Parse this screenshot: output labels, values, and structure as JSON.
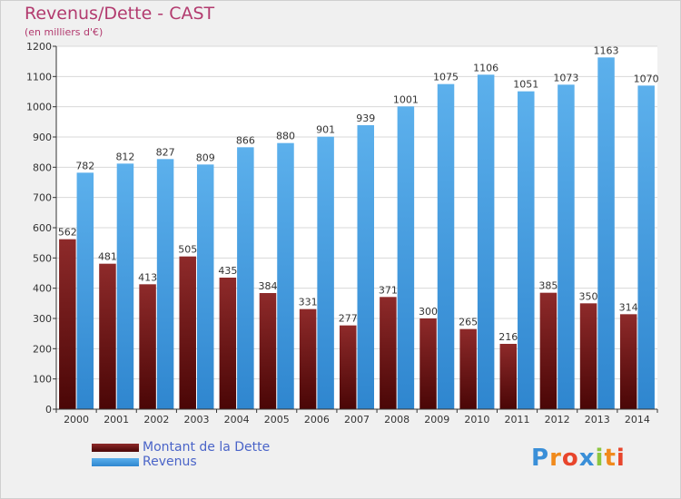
{
  "chart_data": {
    "type": "bar",
    "title": "Revenus/Dette - CAST",
    "subtitle": "(en milliers d'€)",
    "categories": [
      "2000",
      "2001",
      "2002",
      "2003",
      "2004",
      "2005",
      "2006",
      "2007",
      "2008",
      "2009",
      "2010",
      "2011",
      "2012",
      "2013",
      "2014"
    ],
    "series": [
      {
        "name": "Montant de la Dette",
        "color": "#7a1e1e",
        "values": [
          562,
          481,
          413,
          505,
          435,
          384,
          331,
          277,
          371,
          300,
          265,
          216,
          385,
          350,
          314
        ]
      },
      {
        "name": "Revenus",
        "color": "#4aa3e6",
        "values": [
          782,
          812,
          827,
          809,
          866,
          880,
          901,
          939,
          1001,
          1075,
          1106,
          1051,
          1073,
          1163,
          1070
        ]
      }
    ],
    "ylim": [
      0,
      1200
    ],
    "yticks": [
      0,
      100,
      200,
      300,
      400,
      500,
      600,
      700,
      800,
      900,
      1000,
      1100,
      1200
    ],
    "grid": true,
    "legend": "bottom-left"
  },
  "logo": {
    "letters": [
      "P",
      "r",
      "o",
      "x",
      "i",
      "t",
      "i"
    ],
    "colors": [
      "#3a8fd8",
      "#f08a1c",
      "#e8452c",
      "#3a8fd8",
      "#8cc63f",
      "#f08a1c",
      "#e8452c"
    ]
  }
}
